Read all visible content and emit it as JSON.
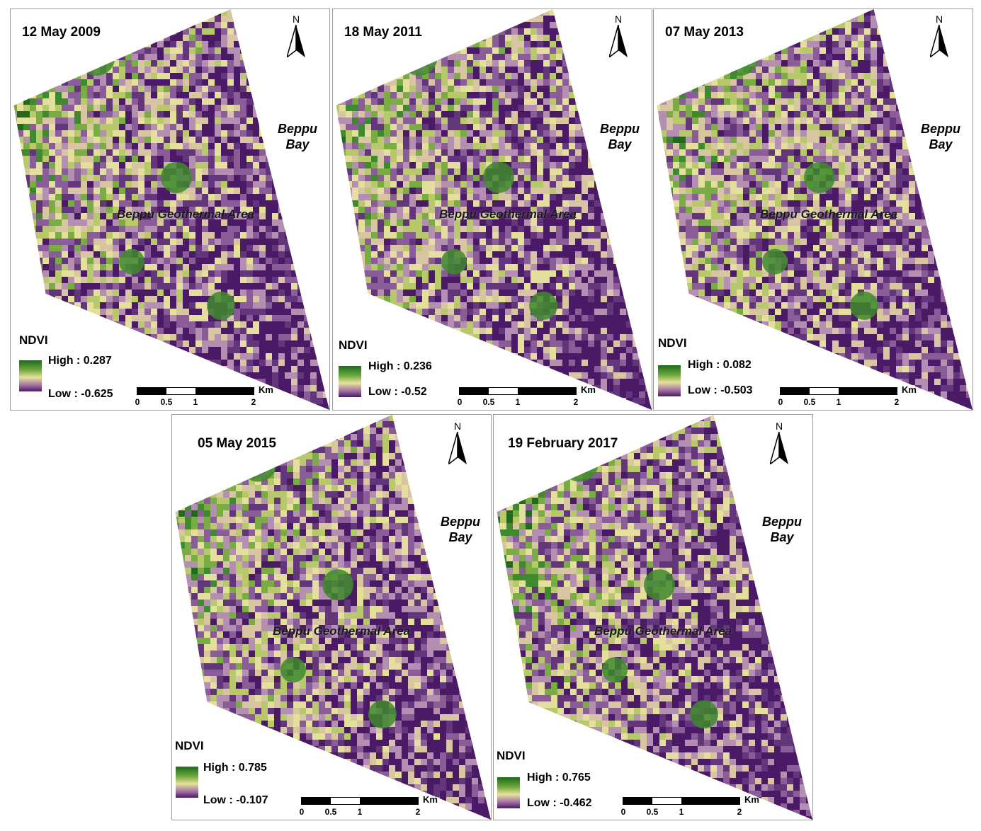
{
  "legend_title": "NDVI",
  "bay_label_line1": "Beppu",
  "bay_label_line2": "Bay",
  "area_label": "Beppu Geothermal Area",
  "north_label": "N",
  "scale": {
    "unit": "Km",
    "ticks": [
      "0",
      "0.5",
      "1",
      "2"
    ]
  },
  "colors": {
    "high": "#1d6b1d",
    "mid": "#e6e29a",
    "low": "#4a1a66"
  },
  "panels": [
    {
      "date": "12 May 2009",
      "high": "High : 0.287",
      "low": "Low : -0.625"
    },
    {
      "date": "18 May 2011",
      "high": "High : 0.236",
      "low": "Low : -0.52"
    },
    {
      "date": "07 May 2013",
      "high": "High : 0.082",
      "low": "Low : -0.503"
    },
    {
      "date": "05 May 2015",
      "high": "High : 0.785",
      "low": "Low : -0.107"
    },
    {
      "date": "19 February 2017",
      "high": "High : 0.765",
      "low": "Low : -0.462"
    }
  ]
}
